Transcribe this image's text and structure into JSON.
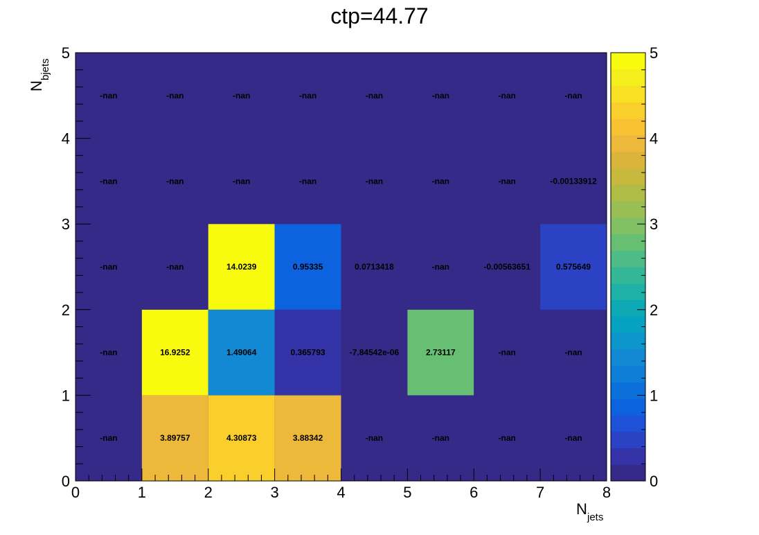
{
  "chart_data": {
    "type": "heatmap",
    "title": "ctp=44.77",
    "xlabel": {
      "main": "N",
      "sub": "jets"
    },
    "ylabel": {
      "main": "N",
      "sub": "bjets"
    },
    "xlim": [
      0,
      8
    ],
    "ylim": [
      0,
      5
    ],
    "x_ticks": [
      "0",
      "1",
      "2",
      "3",
      "4",
      "5",
      "6",
      "7",
      "8"
    ],
    "y_ticks": [
      "0",
      "1",
      "2",
      "3",
      "4",
      "5"
    ],
    "zlim": [
      0,
      5
    ],
    "z_ticks": [
      "0",
      "1",
      "2",
      "3",
      "4",
      "5"
    ],
    "palette": [
      "#352a87",
      "#3533a8",
      "#2b42c4",
      "#1d52d8",
      "#0d62df",
      "#0b70da",
      "#0f7ed6",
      "#1289d2",
      "#0d96cc",
      "#06a2c1",
      "#0daab5",
      "#1eb1a6",
      "#34b797",
      "#4dbc86",
      "#67bf74",
      "#81c063",
      "#99bf54",
      "#b1bc47",
      "#c7b83e",
      "#dbb53b",
      "#ecb93a",
      "#f8c233",
      "#fbcf2b",
      "#f8e023",
      "#f4ef1c",
      "#f9fb0e"
    ],
    "cells": [
      {
        "x": 0,
        "y": 0,
        "value": null,
        "label": "-nan"
      },
      {
        "x": 1,
        "y": 0,
        "value": 3.89757,
        "label": "3.89757"
      },
      {
        "x": 2,
        "y": 0,
        "value": 4.30873,
        "label": "4.30873"
      },
      {
        "x": 3,
        "y": 0,
        "value": 3.88342,
        "label": "3.88342"
      },
      {
        "x": 4,
        "y": 0,
        "value": null,
        "label": "-nan"
      },
      {
        "x": 5,
        "y": 0,
        "value": null,
        "label": "-nan"
      },
      {
        "x": 6,
        "y": 0,
        "value": null,
        "label": "-nan"
      },
      {
        "x": 7,
        "y": 0,
        "value": null,
        "label": "-nan"
      },
      {
        "x": 0,
        "y": 1,
        "value": null,
        "label": "-nan"
      },
      {
        "x": 1,
        "y": 1,
        "value": 16.9252,
        "label": "16.9252"
      },
      {
        "x": 2,
        "y": 1,
        "value": 1.49064,
        "label": "1.49064"
      },
      {
        "x": 3,
        "y": 1,
        "value": 0.365793,
        "label": "0.365793"
      },
      {
        "x": 4,
        "y": 1,
        "value": -7.84542e-06,
        "label": "-7.84542e-06"
      },
      {
        "x": 5,
        "y": 1,
        "value": 2.73117,
        "label": "2.73117"
      },
      {
        "x": 6,
        "y": 1,
        "value": null,
        "label": "-nan"
      },
      {
        "x": 7,
        "y": 1,
        "value": null,
        "label": "-nan"
      },
      {
        "x": 0,
        "y": 2,
        "value": null,
        "label": "-nan"
      },
      {
        "x": 1,
        "y": 2,
        "value": null,
        "label": "-nan"
      },
      {
        "x": 2,
        "y": 2,
        "value": 14.0239,
        "label": "14.0239"
      },
      {
        "x": 3,
        "y": 2,
        "value": 0.95335,
        "label": "0.95335"
      },
      {
        "x": 4,
        "y": 2,
        "value": 0.0713418,
        "label": "0.0713418"
      },
      {
        "x": 5,
        "y": 2,
        "value": null,
        "label": "-nan"
      },
      {
        "x": 6,
        "y": 2,
        "value": -0.00563651,
        "label": "-0.00563651"
      },
      {
        "x": 7,
        "y": 2,
        "value": 0.575649,
        "label": "0.575649"
      },
      {
        "x": 0,
        "y": 3,
        "value": null,
        "label": "-nan"
      },
      {
        "x": 1,
        "y": 3,
        "value": null,
        "label": "-nan"
      },
      {
        "x": 2,
        "y": 3,
        "value": null,
        "label": "-nan"
      },
      {
        "x": 3,
        "y": 3,
        "value": null,
        "label": "-nan"
      },
      {
        "x": 4,
        "y": 3,
        "value": null,
        "label": "-nan"
      },
      {
        "x": 5,
        "y": 3,
        "value": null,
        "label": "-nan"
      },
      {
        "x": 6,
        "y": 3,
        "value": null,
        "label": "-nan"
      },
      {
        "x": 7,
        "y": 3,
        "value": -0.00133912,
        "label": "-0.00133912"
      },
      {
        "x": 0,
        "y": 4,
        "value": null,
        "label": "-nan"
      },
      {
        "x": 1,
        "y": 4,
        "value": null,
        "label": "-nan"
      },
      {
        "x": 2,
        "y": 4,
        "value": null,
        "label": "-nan"
      },
      {
        "x": 3,
        "y": 4,
        "value": null,
        "label": "-nan"
      },
      {
        "x": 4,
        "y": 4,
        "value": null,
        "label": "-nan"
      },
      {
        "x": 5,
        "y": 4,
        "value": null,
        "label": "-nan"
      },
      {
        "x": 6,
        "y": 4,
        "value": null,
        "label": "-nan"
      },
      {
        "x": 7,
        "y": 4,
        "value": null,
        "label": "-nan"
      }
    ],
    "grid": false,
    "colorbar": "right"
  }
}
